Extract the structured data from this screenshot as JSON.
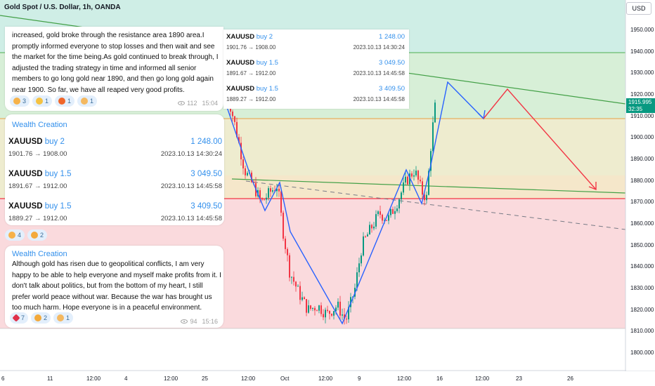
{
  "chart": {
    "title": "Gold Spot / U.S. Dollar, 1h, OANDA",
    "currency": "USD",
    "price_axis": [
      "1950.000",
      "1940.000",
      "1930.000",
      "1920.000",
      "1910.000",
      "1900.000",
      "1890.000",
      "1880.000",
      "1870.000",
      "1860.000",
      "1850.000",
      "1840.000",
      "1830.000",
      "1820.000",
      "1810.000",
      "1800.000"
    ],
    "time_axis": [
      "6",
      "11",
      "12:00",
      "4",
      "12:00",
      "25",
      "12:00",
      "Oct",
      "12:00",
      "9",
      "12:00",
      "16",
      "12:00",
      "23",
      "26"
    ],
    "last_price": "1915.995",
    "countdown": "32:35",
    "colors": {
      "up_candle": "#089981",
      "down_candle": "#f23645",
      "resistance_zone": "#d7efd7",
      "green_zone": "#cfeee6",
      "yellow_zone": "#eeeccf",
      "red_zone": "#fadadd",
      "support_line": "#f23645",
      "pattern_line": "#2962ff",
      "forecast_line": "#f23645"
    }
  },
  "msg_top": {
    "text_cut": "increased, gold broke through the resistance area 1890 area.I promptly informed everyone to stop losses and then wait and see the market for the time being.As gold continued to break through, I adjusted the trading strategy in time and informed all senior members to go long gold near 1890, and then go long gold again near 1900. So far, we have all reaped very good profits.",
    "lines": [
      "increased, gold broke through the resistance area 1890 area.I",
      "promptly informed everyone to stop losses and then wait and see",
      "the market for the time being.As gold continued to break through, I",
      "adjusted the trading strategy in time and informed all senior",
      "members to go long gold near 1890, and then go long gold again",
      "near 1900. So far, we have all reaped very good profits."
    ],
    "reactions": [
      {
        "icon": "thumbs-up-icon",
        "count": "3"
      },
      {
        "icon": "laugh-icon",
        "count": "1"
      },
      {
        "icon": "fire-icon",
        "count": "1"
      },
      {
        "icon": "pray-icon",
        "count": "1"
      }
    ],
    "views": "112",
    "time": "15:04"
  },
  "trades_overlay": [
    {
      "symbol": "XAUUSD",
      "dir": "buy 2",
      "profit": "1 248.00",
      "range": "1901.76 → 1908.00",
      "date": "2023.10.13 14:30:24"
    },
    {
      "symbol": "XAUUSD",
      "dir": "buy 1.5",
      "profit": "3 049.50",
      "range": "1891.67 → 1912.00",
      "date": "2023.10.13 14:45:58"
    },
    {
      "symbol": "XAUUSD",
      "dir": "buy 1.5",
      "profit": "3 409.50",
      "range": "1889.27 → 1912.00",
      "date": "2023.10.13 14:45:58"
    }
  ],
  "msg_wealth": {
    "title": "Wealth Creation",
    "trades": [
      {
        "symbol": "XAUUSD",
        "dir": "buy 2",
        "profit": "1 248.00",
        "range": "1901.76 → 1908.00",
        "date": "2023.10.13 14:30:24"
      },
      {
        "symbol": "XAUUSD",
        "dir": "buy 1.5",
        "profit": "3 049.50",
        "range": "1891.67 → 1912.00",
        "date": "2023.10.13 14:45:58"
      },
      {
        "symbol": "XAUUSD",
        "dir": "buy 1.5",
        "profit": "3 409.50",
        "range": "1889.27 → 1912.00",
        "date": "2023.10.13 14:45:58"
      }
    ],
    "reactions": [
      {
        "icon": "thumbs-up-icon",
        "count": "4"
      },
      {
        "icon": "clap-icon",
        "count": "2"
      }
    ]
  },
  "msg_peace": {
    "title": "Wealth Creation",
    "lines": [
      "Although gold has risen due to geopolitical conflicts, I am very",
      "happy to be able to help everyone and myself make profits from it. I",
      "don't talk about politics, but from the bottom of my heart, I still",
      "prefer world peace without war. Because the war has brought us",
      "too much harm. Hope everyone is in a peaceful environment."
    ],
    "reactions": [
      {
        "icon": "heart-icon",
        "count": "7"
      },
      {
        "icon": "clap-icon",
        "count": "2"
      },
      {
        "icon": "pray-icon",
        "count": "1"
      }
    ],
    "views": "94",
    "time": "15:16"
  }
}
